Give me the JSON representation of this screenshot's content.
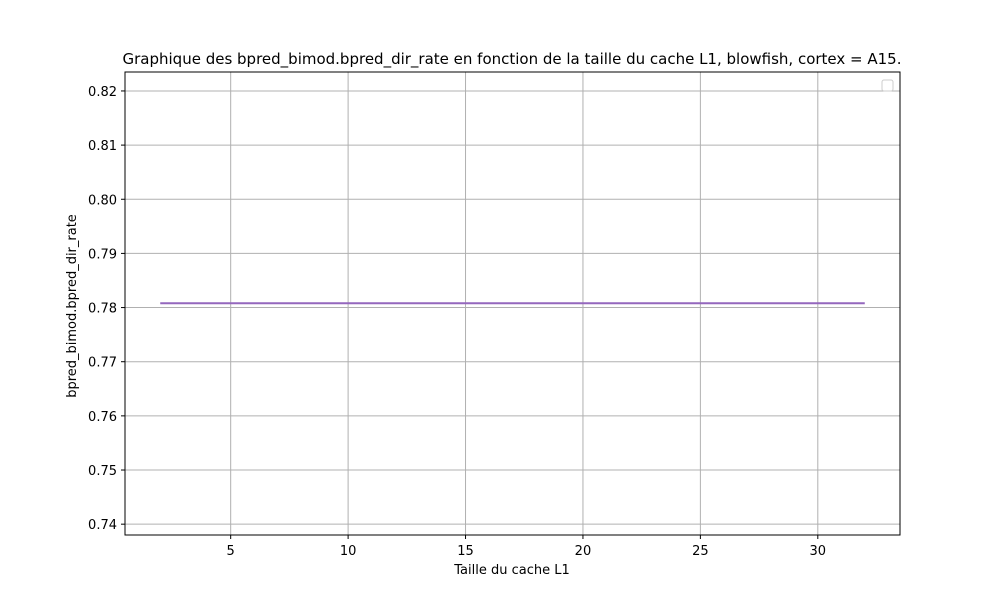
{
  "chart_data": {
    "type": "line",
    "title": "Graphique des bpred_bimod.bpred_dir_rate en fonction de la taille du cache L1, blowfish, cortex = A15.",
    "xlabel": "Taille du cache L1",
    "ylabel": "bpred_bimod.bpred_dir_rate",
    "xlim": [
      0.5,
      33.5
    ],
    "ylim": [
      0.738,
      0.8235
    ],
    "xticks": [
      5,
      10,
      15,
      20,
      25,
      30
    ],
    "xtick_labels": [
      "5",
      "10",
      "15",
      "20",
      "25",
      "30"
    ],
    "yticks": [
      0.74,
      0.75,
      0.76,
      0.77,
      0.78,
      0.79,
      0.8,
      0.81,
      0.82
    ],
    "ytick_labels": [
      "0.74",
      "0.75",
      "0.76",
      "0.77",
      "0.78",
      "0.79",
      "0.80",
      "0.81",
      "0.82"
    ],
    "grid": true,
    "legend": {
      "placement": "top-right",
      "entries": []
    },
    "series": [
      {
        "color": "#9467bd",
        "x": [
          2,
          4,
          8,
          16,
          32
        ],
        "y": [
          0.7808,
          0.7808,
          0.7808,
          0.7808,
          0.7808
        ]
      }
    ]
  }
}
